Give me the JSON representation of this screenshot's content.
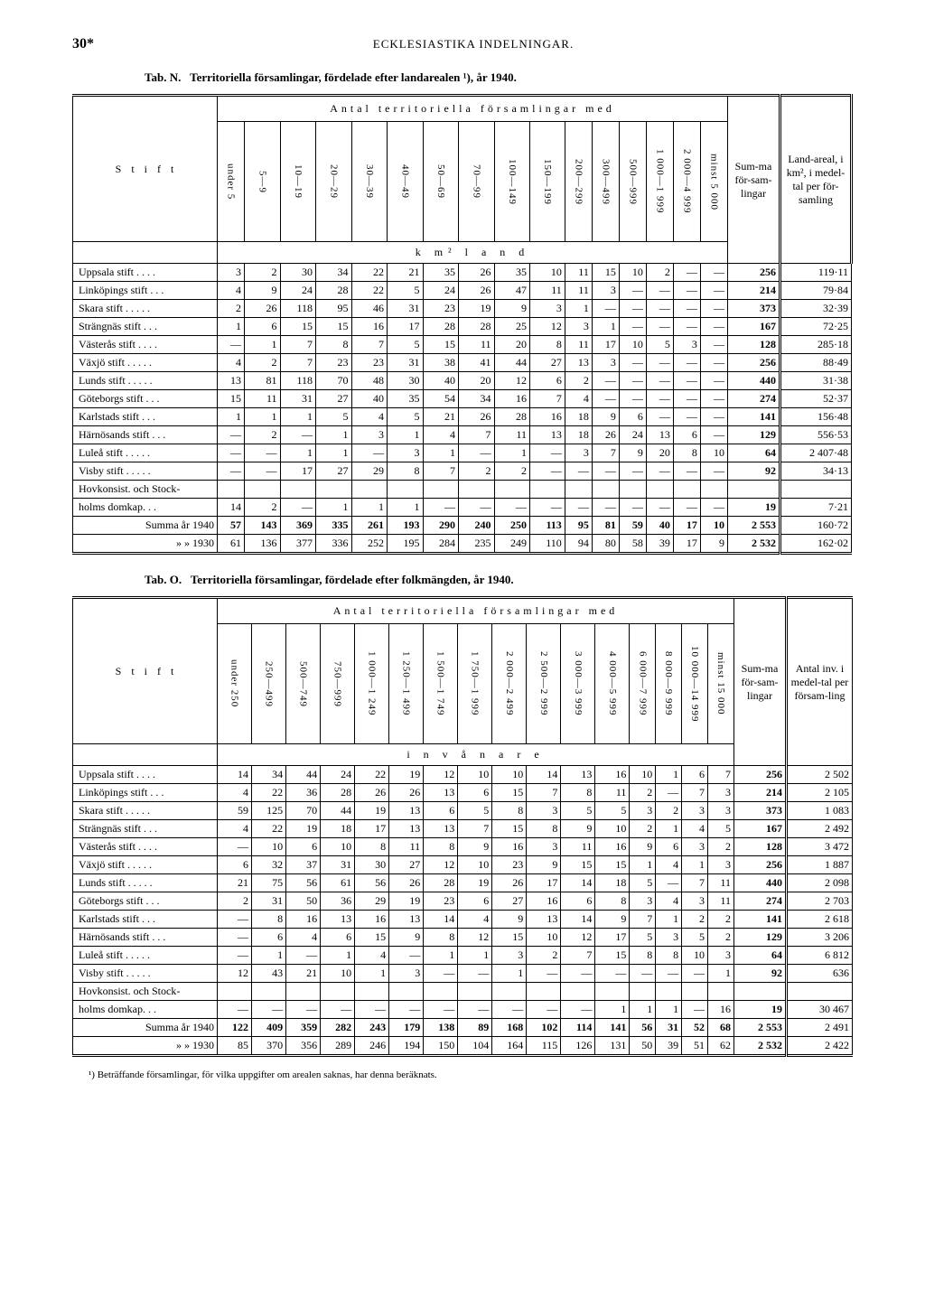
{
  "page_number": "30*",
  "running_head": "ECKLESIASTIKA INDELNINGAR.",
  "tableN": {
    "prefix": "Tab. N.",
    "title": "Territoriella församlingar, fördelade efter landarealen ¹), år 1940.",
    "super_header": "Antal territoriella församlingar med",
    "stub_header": "S t i f t",
    "unit_label": "k m²   l a n d",
    "col_headers": [
      "under 5",
      "5—9",
      "10—19",
      "20—29",
      "30—39",
      "40—49",
      "50—69",
      "70—99",
      "100—149",
      "150—199",
      "200—299",
      "300—499",
      "500—999",
      "1 000—1 999",
      "2 000—4 999",
      "minst 5 000"
    ],
    "sum_header": "Sum-ma för-sam-lingar",
    "right_header": "Land-areal, i km², i medel-tal per för-samling",
    "rows": [
      {
        "label": "Uppsala stift . . . .",
        "cells": [
          "3",
          "2",
          "30",
          "34",
          "22",
          "21",
          "35",
          "26",
          "35",
          "10",
          "11",
          "15",
          "10",
          "2",
          "—",
          "—"
        ],
        "sum": "256",
        "r": "119·11"
      },
      {
        "label": "Linköpings stift . . .",
        "cells": [
          "4",
          "9",
          "24",
          "28",
          "22",
          "5",
          "24",
          "26",
          "47",
          "11",
          "11",
          "3",
          "—",
          "—",
          "—",
          "—"
        ],
        "sum": "214",
        "r": "79·84"
      },
      {
        "label": "Skara stift . . . . .",
        "cells": [
          "2",
          "26",
          "118",
          "95",
          "46",
          "31",
          "23",
          "19",
          "9",
          "3",
          "1",
          "—",
          "—",
          "—",
          "—",
          "—"
        ],
        "sum": "373",
        "r": "32·39"
      },
      {
        "label": "Strängnäs stift . . .",
        "cells": [
          "1",
          "6",
          "15",
          "15",
          "16",
          "17",
          "28",
          "28",
          "25",
          "12",
          "3",
          "1",
          "—",
          "—",
          "—",
          "—"
        ],
        "sum": "167",
        "r": "72·25"
      },
      {
        "label": "Västerås stift . . . .",
        "cells": [
          "—",
          "1",
          "7",
          "8",
          "7",
          "5",
          "15",
          "11",
          "20",
          "8",
          "11",
          "17",
          "10",
          "5",
          "3",
          "—"
        ],
        "sum": "128",
        "r": "285·18"
      },
      {
        "label": "Växjö stift . . . . .",
        "cells": [
          "4",
          "2",
          "7",
          "23",
          "23",
          "31",
          "38",
          "41",
          "44",
          "27",
          "13",
          "3",
          "—",
          "—",
          "—",
          "—"
        ],
        "sum": "256",
        "r": "88·49"
      },
      {
        "label": "Lunds stift . . . . .",
        "cells": [
          "13",
          "81",
          "118",
          "70",
          "48",
          "30",
          "40",
          "20",
          "12",
          "6",
          "2",
          "—",
          "—",
          "—",
          "—",
          "—"
        ],
        "sum": "440",
        "r": "31·38"
      },
      {
        "label": "Göteborgs stift . . .",
        "cells": [
          "15",
          "11",
          "31",
          "27",
          "40",
          "35",
          "54",
          "34",
          "16",
          "7",
          "4",
          "—",
          "—",
          "—",
          "—",
          "—"
        ],
        "sum": "274",
        "r": "52·37"
      },
      {
        "label": "Karlstads stift . . .",
        "cells": [
          "1",
          "1",
          "1",
          "5",
          "4",
          "5",
          "21",
          "26",
          "28",
          "16",
          "18",
          "9",
          "6",
          "—",
          "—",
          "—"
        ],
        "sum": "141",
        "r": "156·48"
      },
      {
        "label": "Härnösands stift . . .",
        "cells": [
          "—",
          "2",
          "—",
          "1",
          "3",
          "1",
          "4",
          "7",
          "11",
          "13",
          "18",
          "26",
          "24",
          "13",
          "6",
          "—"
        ],
        "sum": "129",
        "r": "556·53"
      },
      {
        "label": "Luleå stift . . . . .",
        "cells": [
          "—",
          "—",
          "1",
          "1",
          "—",
          "3",
          "1",
          "—",
          "1",
          "—",
          "3",
          "7",
          "9",
          "20",
          "8",
          "10"
        ],
        "sum": "64",
        "r": "2 407·48"
      },
      {
        "label": "Visby stift . . . . .",
        "cells": [
          "—",
          "—",
          "17",
          "27",
          "29",
          "8",
          "7",
          "2",
          "2",
          "—",
          "—",
          "—",
          "—",
          "—",
          "—",
          "—"
        ],
        "sum": "92",
        "r": "34·13"
      },
      {
        "label": "Hovkonsist. och Stock-",
        "cells": [
          "",
          "",
          "",
          "",
          "",
          "",
          "",
          "",
          "",
          "",
          "",
          "",
          "",
          "",
          "",
          ""
        ],
        "sum": "",
        "r": ""
      },
      {
        "label": "   holms domkap. . .",
        "cells": [
          "14",
          "2",
          "—",
          "1",
          "1",
          "1",
          "—",
          "—",
          "—",
          "—",
          "—",
          "—",
          "—",
          "—",
          "—",
          "—"
        ],
        "sum": "19",
        "r": "7·21"
      }
    ],
    "sum1940_label": "Summa år 1940",
    "sum1940": [
      "57",
      "143",
      "369",
      "335",
      "261",
      "193",
      "290",
      "240",
      "250",
      "113",
      "95",
      "81",
      "59",
      "40",
      "17",
      "10"
    ],
    "sum1940_sum": "2 553",
    "sum1940_r": "160·72",
    "sum1930_label": "»       » 1930",
    "sum1930": [
      "61",
      "136",
      "377",
      "336",
      "252",
      "195",
      "284",
      "235",
      "249",
      "110",
      "94",
      "80",
      "58",
      "39",
      "17",
      "9"
    ],
    "sum1930_sum": "2 532",
    "sum1930_r": "162·02"
  },
  "tableO": {
    "prefix": "Tab. O.",
    "title": "Territoriella församlingar, fördelade efter folkmängden, år 1940.",
    "super_header": "Antal territoriella församlingar med",
    "stub_header": "S t i f t",
    "unit_label": "i n v å n a r e",
    "col_headers": [
      "under 250",
      "250—499",
      "500—749",
      "750—999",
      "1 000—1 249",
      "1 250—1 499",
      "1 500—1 749",
      "1 750—1 999",
      "2 000—2 499",
      "2 500—2 999",
      "3 000—3 999",
      "4 000—5 999",
      "6 000—7 999",
      "8 000—9 999",
      "10 000—14 999",
      "minst 15 000"
    ],
    "sum_header": "Sum-ma för-sam-lingar",
    "right_header": "Antal inv. i medel-tal per försam-ling",
    "rows": [
      {
        "label": "Uppsala stift . . . .",
        "cells": [
          "14",
          "34",
          "44",
          "24",
          "22",
          "19",
          "12",
          "10",
          "10",
          "14",
          "13",
          "16",
          "10",
          "1",
          "6",
          "7"
        ],
        "sum": "256",
        "r": "2 502"
      },
      {
        "label": "Linköpings stift . . .",
        "cells": [
          "4",
          "22",
          "36",
          "28",
          "26",
          "26",
          "13",
          "6",
          "15",
          "7",
          "8",
          "11",
          "2",
          "—",
          "7",
          "3"
        ],
        "sum": "214",
        "r": "2 105"
      },
      {
        "label": "Skara stift . . . . .",
        "cells": [
          "59",
          "125",
          "70",
          "44",
          "19",
          "13",
          "6",
          "5",
          "8",
          "3",
          "5",
          "5",
          "3",
          "2",
          "3",
          "3"
        ],
        "sum": "373",
        "r": "1 083"
      },
      {
        "label": "Strängnäs stift . . .",
        "cells": [
          "4",
          "22",
          "19",
          "18",
          "17",
          "13",
          "13",
          "7",
          "15",
          "8",
          "9",
          "10",
          "2",
          "1",
          "4",
          "5"
        ],
        "sum": "167",
        "r": "2 492"
      },
      {
        "label": "Västerås stift . . . .",
        "cells": [
          "—",
          "10",
          "6",
          "10",
          "8",
          "11",
          "8",
          "9",
          "16",
          "3",
          "11",
          "16",
          "9",
          "6",
          "3",
          "2"
        ],
        "sum": "128",
        "r": "3 472"
      },
      {
        "label": "Växjö stift . . . . .",
        "cells": [
          "6",
          "32",
          "37",
          "31",
          "30",
          "27",
          "12",
          "10",
          "23",
          "9",
          "15",
          "15",
          "1",
          "4",
          "1",
          "3"
        ],
        "sum": "256",
        "r": "1 887"
      },
      {
        "label": "Lunds stift . . . . .",
        "cells": [
          "21",
          "75",
          "56",
          "61",
          "56",
          "26",
          "28",
          "19",
          "26",
          "17",
          "14",
          "18",
          "5",
          "—",
          "7",
          "11"
        ],
        "sum": "440",
        "r": "2 098"
      },
      {
        "label": "Göteborgs stift . . .",
        "cells": [
          "2",
          "31",
          "50",
          "36",
          "29",
          "19",
          "23",
          "6",
          "27",
          "16",
          "6",
          "8",
          "3",
          "4",
          "3",
          "11"
        ],
        "sum": "274",
        "r": "2 703"
      },
      {
        "label": "Karlstads stift . . .",
        "cells": [
          "—",
          "8",
          "16",
          "13",
          "16",
          "13",
          "14",
          "4",
          "9",
          "13",
          "14",
          "9",
          "7",
          "1",
          "2",
          "2"
        ],
        "sum": "141",
        "r": "2 618"
      },
      {
        "label": "Härnösands stift . . .",
        "cells": [
          "—",
          "6",
          "4",
          "6",
          "15",
          "9",
          "8",
          "12",
          "15",
          "10",
          "12",
          "17",
          "5",
          "3",
          "5",
          "2"
        ],
        "sum": "129",
        "r": "3 206"
      },
      {
        "label": "Luleå stift . . . . .",
        "cells": [
          "—",
          "1",
          "—",
          "1",
          "4",
          "—",
          "1",
          "1",
          "3",
          "2",
          "7",
          "15",
          "8",
          "8",
          "10",
          "3"
        ],
        "sum": "64",
        "r": "6 812"
      },
      {
        "label": "Visby stift . . . . .",
        "cells": [
          "12",
          "43",
          "21",
          "10",
          "1",
          "3",
          "—",
          "—",
          "1",
          "—",
          "—",
          "—",
          "—",
          "—",
          "—",
          "1"
        ],
        "sum": "92",
        "r": "636"
      },
      {
        "label": "Hovkonsist. och Stock-",
        "cells": [
          "",
          "",
          "",
          "",
          "",
          "",
          "",
          "",
          "",
          "",
          "",
          "",
          "",
          "",
          "",
          ""
        ],
        "sum": "",
        "r": ""
      },
      {
        "label": "   holms domkap. . .",
        "cells": [
          "—",
          "—",
          "—",
          "—",
          "—",
          "—",
          "—",
          "—",
          "—",
          "—",
          "—",
          "1",
          "1",
          "1",
          "—",
          "16"
        ],
        "sum": "19",
        "r": "30 467"
      }
    ],
    "sum1940_label": "Summa år 1940",
    "sum1940": [
      "122",
      "409",
      "359",
      "282",
      "243",
      "179",
      "138",
      "89",
      "168",
      "102",
      "114",
      "141",
      "56",
      "31",
      "52",
      "68"
    ],
    "sum1940_sum": "2 553",
    "sum1940_r": "2 491",
    "sum1930_label": "»       » 1930",
    "sum1930": [
      "85",
      "370",
      "356",
      "289",
      "246",
      "194",
      "150",
      "104",
      "164",
      "115",
      "126",
      "131",
      "50",
      "39",
      "51",
      "62"
    ],
    "sum1930_sum": "2 532",
    "sum1930_r": "2 422"
  },
  "footnote": "¹) Beträffande församlingar, för vilka uppgifter om arealen saknas, har denna beräknats."
}
